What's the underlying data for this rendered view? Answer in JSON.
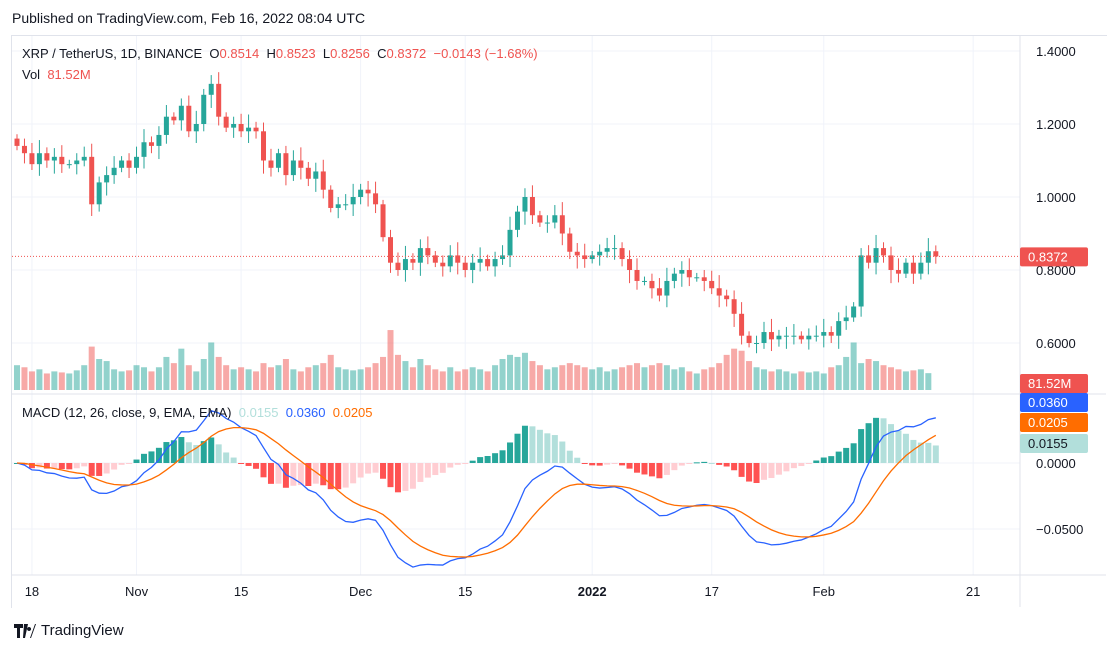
{
  "published": "Published on TradingView.com, Feb 16, 2022 08:04 UTC",
  "legend": {
    "symbol": "XRP / TetherUS, 1D, BINANCE",
    "o_label": "O",
    "o": "0.8514",
    "h_label": "H",
    "h": "0.8523",
    "l_label": "L",
    "l": "0.8256",
    "c_label": "C",
    "c": "0.8372",
    "change": "−0.0143 (−1.68%)",
    "vol_label": "Vol",
    "vol": "81.52M"
  },
  "macd_legend": {
    "title": "MACD (12, 26, close, 9, EMA, EMA)",
    "hist": "0.0155",
    "macd": "0.0360",
    "signal": "0.0205"
  },
  "labels": {
    "price": "0.8372",
    "volume": "81.52M",
    "macd": "0.0360",
    "signal": "0.0205",
    "hist": "0.0155"
  },
  "brand": "TradingView",
  "colors": {
    "up": "#26a69a",
    "down": "#ef5350",
    "macd": "#2962ff",
    "signal": "#ff6d00"
  },
  "chart_data": {
    "type": "candlestick",
    "title": "XRP / TetherUS, 1D, BINANCE",
    "start_date": "2021-10-16",
    "price_ticks": [
      "1.4000",
      "1.2000",
      "1.0000",
      "0.8000",
      "0.6000"
    ],
    "macd_ticks": [
      "0.0000",
      "−0.0500"
    ],
    "time_ticks": [
      {
        "label": "18",
        "index": 2
      },
      {
        "label": "Nov",
        "index": 16
      },
      {
        "label": "15",
        "index": 30
      },
      {
        "label": "Dec",
        "index": 46
      },
      {
        "label": "15",
        "index": 60
      },
      {
        "label": "2022",
        "index": 77
      },
      {
        "label": "17",
        "index": 93
      },
      {
        "label": "Feb",
        "index": 108
      },
      {
        "label": "21",
        "index": 128
      }
    ],
    "ylim": [
      0.53,
      1.45
    ],
    "close": [
      1.14,
      1.12,
      1.09,
      1.12,
      1.1,
      1.11,
      1.09,
      1.09,
      1.1,
      1.11,
      0.98,
      1.04,
      1.06,
      1.08,
      1.1,
      1.08,
      1.11,
      1.15,
      1.14,
      1.17,
      1.22,
      1.21,
      1.25,
      1.18,
      1.2,
      1.28,
      1.31,
      1.22,
      1.19,
      1.2,
      1.18,
      1.19,
      1.18,
      1.1,
      1.08,
      1.12,
      1.06,
      1.1,
      1.08,
      1.05,
      1.07,
      1.02,
      0.97,
      0.98,
      0.98,
      1.0,
      1.02,
      1.01,
      0.98,
      0.89,
      0.82,
      0.8,
      0.83,
      0.82,
      0.86,
      0.84,
      0.82,
      0.81,
      0.84,
      0.82,
      0.8,
      0.82,
      0.83,
      0.81,
      0.83,
      0.84,
      0.91,
      0.96,
      1.0,
      0.95,
      0.93,
      0.93,
      0.95,
      0.9,
      0.85,
      0.84,
      0.83,
      0.84,
      0.85,
      0.86,
      0.86,
      0.83,
      0.8,
      0.77,
      0.77,
      0.75,
      0.73,
      0.77,
      0.79,
      0.8,
      0.78,
      0.78,
      0.77,
      0.75,
      0.73,
      0.72,
      0.68,
      0.62,
      0.6,
      0.6,
      0.63,
      0.61,
      0.62,
      0.62,
      0.62,
      0.61,
      0.62,
      0.62,
      0.63,
      0.62,
      0.66,
      0.67,
      0.7,
      0.84,
      0.82,
      0.86,
      0.84,
      0.8,
      0.79,
      0.82,
      0.79,
      0.82,
      0.8514,
      0.8372
    ],
    "volume_m": [
      120,
      110,
      90,
      100,
      80,
      90,
      85,
      80,
      95,
      120,
      210,
      150,
      140,
      100,
      90,
      95,
      120,
      110,
      90,
      110,
      160,
      130,
      200,
      120,
      90,
      150,
      230,
      160,
      120,
      100,
      110,
      100,
      90,
      130,
      110,
      120,
      150,
      100,
      90,
      110,
      120,
      130,
      170,
      110,
      100,
      95,
      100,
      110,
      130,
      160,
      290,
      170,
      140,
      110,
      150,
      120,
      100,
      90,
      110,
      90,
      100,
      110,
      100,
      90,
      120,
      150,
      170,
      160,
      180,
      140,
      120,
      100,
      110,
      120,
      130,
      120,
      110,
      100,
      110,
      90,
      100,
      110,
      120,
      130,
      110,
      120,
      130,
      120,
      100,
      110,
      90,
      80,
      100,
      110,
      130,
      170,
      200,
      190,
      140,
      110,
      100,
      90,
      100,
      90,
      80,
      90,
      85,
      90,
      80,
      110,
      120,
      160,
      230,
      130,
      150,
      140,
      120,
      110,
      100,
      90,
      95,
      100,
      81.52
    ]
  }
}
